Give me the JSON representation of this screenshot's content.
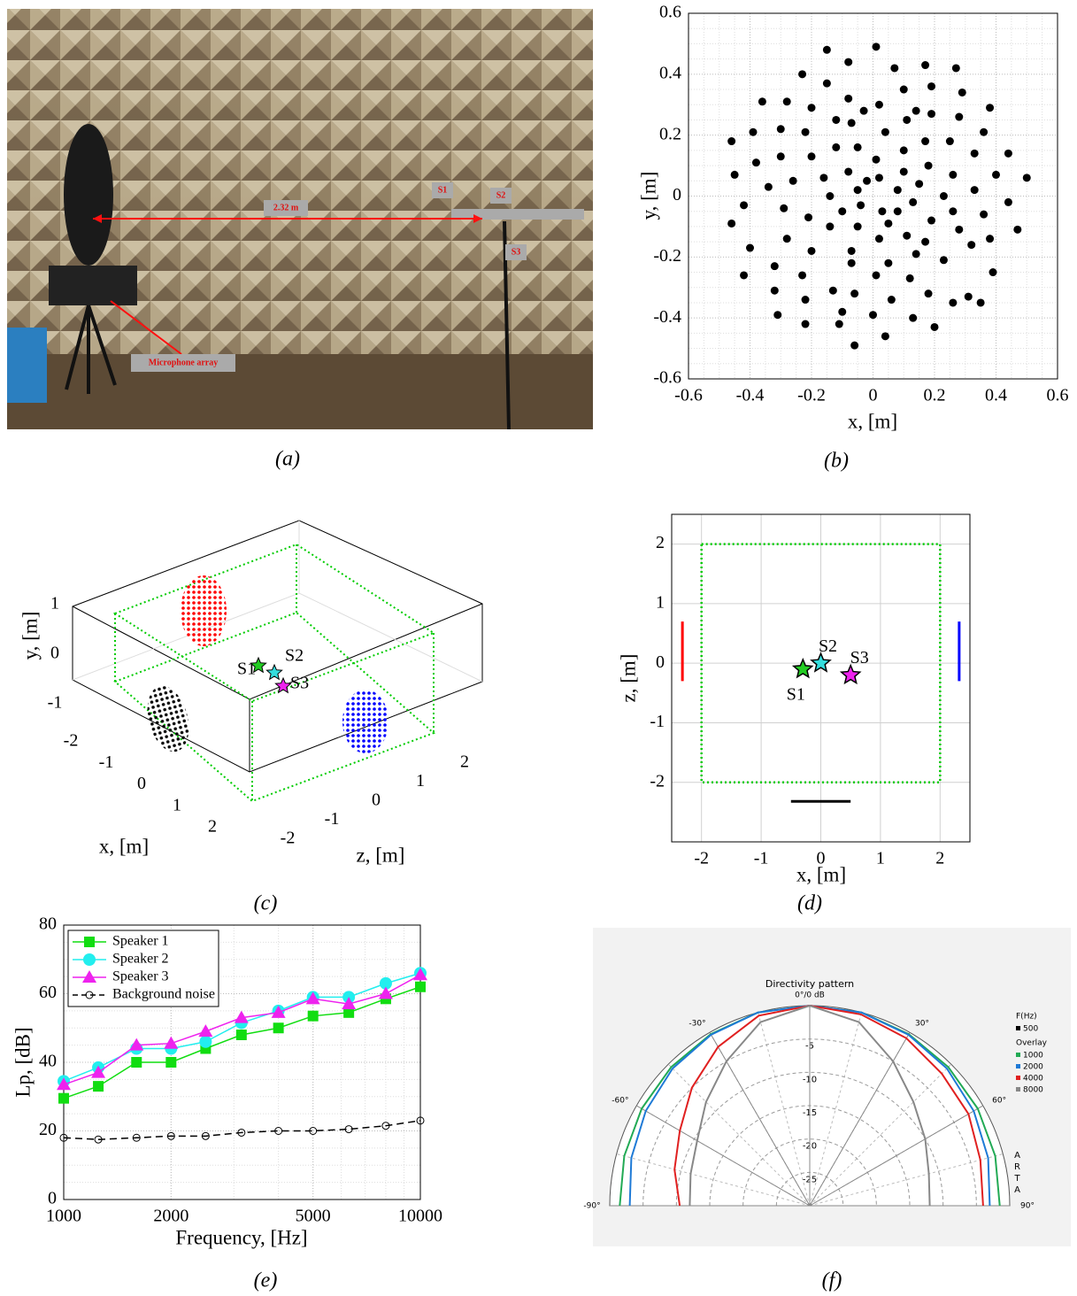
{
  "chart_data": [
    {
      "type": "image",
      "caption": "(a)",
      "labels": [
        "S1",
        "S2",
        "S3",
        "2.32 m",
        "Microphone array"
      ]
    },
    {
      "type": "scatter",
      "caption": "(b)",
      "xlabel": "x, [m]",
      "ylabel": "y, [m]",
      "xlim": [
        -0.6,
        0.6
      ],
      "ylim": [
        -0.6,
        0.6
      ],
      "xticks": [
        -0.6,
        -0.4,
        -0.2,
        0,
        0.2,
        0.4,
        0.6
      ],
      "yticks": [
        -0.6,
        -0.4,
        -0.2,
        0,
        0.2,
        0.4,
        0.6
      ],
      "grid": true,
      "minor_grid": true,
      "color": "#000000",
      "x": [
        0.01,
        -0.15,
        -0.08,
        0.17,
        0.27,
        0.07,
        -0.23,
        -0.15,
        0.19,
        0.1,
        -0.08,
        0.29,
        -0.36,
        -0.28,
        0.02,
        -0.2,
        0.38,
        -0.03,
        0.14,
        0.19,
        0.11,
        0.28,
        -0.12,
        -0.07,
        -0.3,
        -0.39,
        0.36,
        -0.22,
        0.04,
        -0.46,
        0.17,
        0.25,
        -0.12,
        -0.05,
        0.1,
        0.33,
        0.44,
        -0.3,
        -0.2,
        0.01,
        -0.38,
        0.18,
        -0.08,
        0.1,
        0.26,
        0.4,
        -0.45,
        -0.16,
        0.02,
        0.5,
        -0.02,
        -0.26,
        0.15,
        -0.34,
        0.33,
        -0.05,
        0.08,
        -0.14,
        0.23,
        0.44,
        -0.42,
        -0.04,
        0.13,
        0.03,
        -0.29,
        -0.1,
        0.08,
        0.26,
        0.36,
        -0.21,
        -0.46,
        0.19,
        -0.05,
        0.05,
        0.47,
        -0.14,
        0.28,
        0.11,
        -0.28,
        0.02,
        0.17,
        0.38,
        -0.4,
        -0.2,
        -0.07,
        0.32,
        0.14,
        -0.32,
        -0.07,
        0.05,
        0.23,
        -0.42,
        -0.23,
        0.01,
        0.12,
        0.39,
        -0.32,
        -0.13,
        0.18,
        -0.06,
        0.31,
        -0.22,
        0.26,
        0.06,
        0.35,
        -0.1,
        0.0,
        0.13,
        -0.31,
        -0.22,
        -0.11,
        0.2,
        0.04,
        -0.06
      ],
      "values": [
        0.49,
        0.48,
        0.44,
        0.43,
        0.42,
        0.42,
        0.4,
        0.37,
        0.36,
        0.35,
        0.32,
        0.34,
        0.31,
        0.31,
        0.3,
        0.29,
        0.29,
        0.28,
        0.28,
        0.27,
        0.25,
        0.26,
        0.25,
        0.24,
        0.22,
        0.21,
        0.21,
        0.21,
        0.21,
        0.18,
        0.18,
        0.18,
        0.16,
        0.16,
        0.15,
        0.14,
        0.14,
        0.13,
        0.13,
        0.12,
        0.11,
        0.1,
        0.08,
        0.08,
        0.07,
        0.07,
        0.07,
        0.06,
        0.06,
        0.06,
        0.05,
        0.05,
        0.04,
        0.03,
        0.02,
        0.02,
        0.02,
        0.0,
        0.0,
        -0.02,
        -0.03,
        -0.03,
        -0.02,
        -0.05,
        -0.04,
        -0.05,
        -0.05,
        -0.05,
        -0.06,
        -0.07,
        -0.09,
        -0.08,
        -0.1,
        -0.09,
        -0.11,
        -0.1,
        -0.11,
        -0.13,
        -0.14,
        -0.14,
        -0.15,
        -0.14,
        -0.17,
        -0.18,
        -0.18,
        -0.16,
        -0.19,
        -0.23,
        -0.22,
        -0.22,
        -0.21,
        -0.26,
        -0.26,
        -0.26,
        -0.27,
        -0.25,
        -0.31,
        -0.31,
        -0.32,
        -0.32,
        -0.33,
        -0.34,
        -0.35,
        -0.34,
        -0.35,
        -0.38,
        -0.39,
        -0.4,
        -0.39,
        -0.42,
        -0.42,
        -0.43,
        -0.46,
        -0.49
      ]
    },
    {
      "type": "scatter3d",
      "caption": "(c)",
      "xlabel": "x, [m]",
      "ylabel": "y, [m]",
      "zlabel": "z, [m]",
      "xticks": [
        -2,
        -1,
        0,
        1,
        2
      ],
      "yticks": [
        -1,
        0,
        1
      ],
      "zticks": [
        -2,
        -1,
        0,
        1,
        2
      ],
      "source_labels": [
        "S1",
        "S2",
        "S3"
      ]
    },
    {
      "type": "line",
      "caption": "(d)",
      "xlabel": "x, [m]",
      "ylabel": "z, [m]",
      "xlim": [
        -2.5,
        2.5
      ],
      "ylim": [
        -3,
        2.5
      ],
      "xticks": [
        -2,
        -1,
        0,
        1,
        2
      ],
      "yticks": [
        -2,
        -1,
        0,
        1,
        2
      ],
      "grid": true,
      "series": [
        {
          "color": "#00cc00",
          "style": "dotted",
          "x": [
            -2,
            2,
            2,
            -2,
            -2
          ],
          "values": [
            2,
            2,
            -2,
            -2,
            2
          ]
        },
        {
          "color": "#ff0000",
          "x": [
            -2.32,
            -2.32
          ],
          "values": [
            -0.3,
            0.7
          ]
        },
        {
          "color": "#0000ff",
          "x": [
            2.32,
            2.32
          ],
          "values": [
            -0.3,
            0.7
          ]
        },
        {
          "color": "#000000",
          "x": [
            -0.5,
            0.5
          ],
          "values": [
            -2.32,
            -2.32
          ]
        }
      ],
      "sources": [
        {
          "label": "S1",
          "x": -0.3,
          "z": -0.1,
          "color": "#22cc22"
        },
        {
          "label": "S2",
          "x": 0,
          "z": 0,
          "color": "#33dddd"
        },
        {
          "label": "S3",
          "x": 0.5,
          "z": -0.2,
          "color": "#ee22ee"
        }
      ]
    },
    {
      "type": "line",
      "caption": "(e)",
      "xlabel": "Frequency, [Hz]",
      "ylabel": "Lp, [dB]",
      "xscale": "log",
      "xlim": [
        1000,
        10000
      ],
      "ylim": [
        0,
        80
      ],
      "xticks": [
        1000,
        2000,
        5000,
        10000
      ],
      "yticks": [
        0,
        20,
        40,
        60,
        80
      ],
      "grid": true,
      "minor_grid": true,
      "legend": "upper left",
      "x": [
        1000,
        1250,
        1600,
        2000,
        2500,
        3150,
        4000,
        5000,
        6300,
        8000,
        10000
      ],
      "series": [
        {
          "name": "Speaker 1",
          "color": "#11dd11",
          "marker": "square",
          "values": [
            29.5,
            33,
            40,
            40,
            44,
            48,
            50,
            53.5,
            54.5,
            58.5,
            62
          ]
        },
        {
          "name": "Speaker 2",
          "color": "#22eeee",
          "marker": "circle",
          "values": [
            34.5,
            38.5,
            44,
            44,
            46,
            51.5,
            55,
            59,
            59,
            63,
            66
          ]
        },
        {
          "name": "Speaker 3",
          "color": "#ee22ee",
          "marker": "triangle",
          "values": [
            33.5,
            37,
            45,
            45.5,
            49,
            53,
            54.5,
            58.5,
            57,
            60,
            65.5
          ]
        },
        {
          "name": "Background noise",
          "color": "#000000",
          "marker": "open-circle",
          "dashed": true,
          "values": [
            18,
            17.5,
            18,
            18.5,
            18.5,
            19.5,
            20,
            20,
            20.5,
            21.5,
            23
          ]
        }
      ]
    },
    {
      "type": "polar",
      "caption": "(f)",
      "title": "Directivity pattern",
      "rlim": [
        -30,
        0
      ],
      "rticks": [
        -5,
        -10,
        -15,
        -20,
        -25
      ],
      "angle_ticks": [
        {
          "value": 0,
          "label": "0°/0 dB"
        },
        {
          "value": -30,
          "label": "-30°"
        },
        {
          "value": 30,
          "label": "30°"
        },
        {
          "value": -60,
          "label": "-60°"
        },
        {
          "value": 60,
          "label": "60°"
        },
        {
          "value": -90,
          "label": "-90°"
        },
        {
          "value": 90,
          "label": "90°"
        }
      ],
      "legend_title": "F(Hz)",
      "main": {
        "name": "500",
        "color": "#000000"
      },
      "overlay_title": "Overlay",
      "watermark": "ARTA",
      "angles": [
        -90,
        -75,
        -60,
        -45,
        -30,
        -15,
        0,
        15,
        30,
        45,
        60,
        75,
        90
      ],
      "series": [
        {
          "name": "1000",
          "color": "#22aa55",
          "values": [
            -1.5,
            -1.2,
            -0.9,
            -0.6,
            -0.3,
            0,
            0,
            0,
            -0.3,
            -0.6,
            -0.9,
            -1.2,
            -1.5
          ]
        },
        {
          "name": "2000",
          "color": "#1e7ad6",
          "values": [
            -3,
            -2.3,
            -1.6,
            -0.9,
            -0.4,
            0,
            0,
            0,
            -0.4,
            -0.9,
            -1.6,
            -2.3,
            -3
          ]
        },
        {
          "name": "4000",
          "color": "#e02020",
          "values": [
            -10.5,
            -9,
            -7.5,
            -5,
            -2.5,
            -0.5,
            0,
            -0.3,
            -1,
            -2,
            -2.5,
            -3.5,
            -4
          ]
        },
        {
          "name": "8000",
          "color": "#888888",
          "values": [
            -12,
            -11.5,
            -10.5,
            -8,
            -5,
            -1.5,
            0,
            -1.5,
            -5,
            -8,
            -10,
            -11.5,
            -12
          ]
        }
      ]
    }
  ]
}
